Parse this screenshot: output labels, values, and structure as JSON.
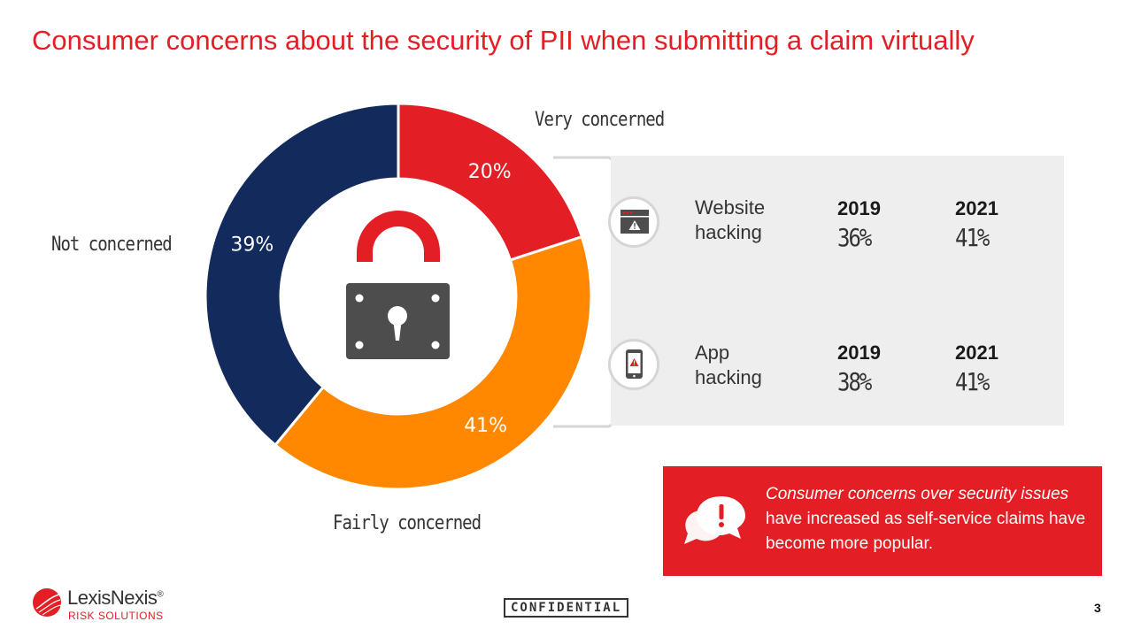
{
  "title": "Consumer concerns about the security of PII when submitting a claim virtually",
  "chart_data": {
    "type": "pie",
    "categories": [
      "Very concerned",
      "Fairly concerned",
      "Not concerned"
    ],
    "values": [
      20,
      41,
      39
    ],
    "value_labels": [
      "20%",
      "41%",
      "39%"
    ],
    "colors": [
      "#e31e24",
      "#ff8800",
      "#122a5c"
    ],
    "legend": "labels beside segments"
  },
  "labels": {
    "very": "Very concerned",
    "fairly": "Fairly concerned",
    "not": "Not concerned"
  },
  "center_icon": "padlock-icon",
  "panel": {
    "items": [
      {
        "icon": "browser-warning-icon",
        "line1": "Website",
        "line2": "hacking",
        "year1": "2019",
        "val1": "36%",
        "year2": "2021",
        "val2": "41%"
      },
      {
        "icon": "phone-warning-icon",
        "line1": "App",
        "line2": "hacking",
        "year1": "2019",
        "val1": "38%",
        "year2": "2021",
        "val2": "41%"
      }
    ]
  },
  "callout": {
    "icon": "speech-bubble-alert-icon",
    "italic": "Consumer concerns over security issues",
    "rest": " have increased as self-service claims have become more popular."
  },
  "footer": {
    "brand": "LexisNexis",
    "brand_mark": "®",
    "sub": "RISK SOLUTIONS",
    "confidential": "CONFIDENTIAL",
    "page": "3"
  },
  "colors": {
    "accent": "#e31e24",
    "orange": "#ff8800",
    "navy": "#122a5c",
    "panel": "#eeeeee",
    "lock": "#4d4d4d"
  }
}
